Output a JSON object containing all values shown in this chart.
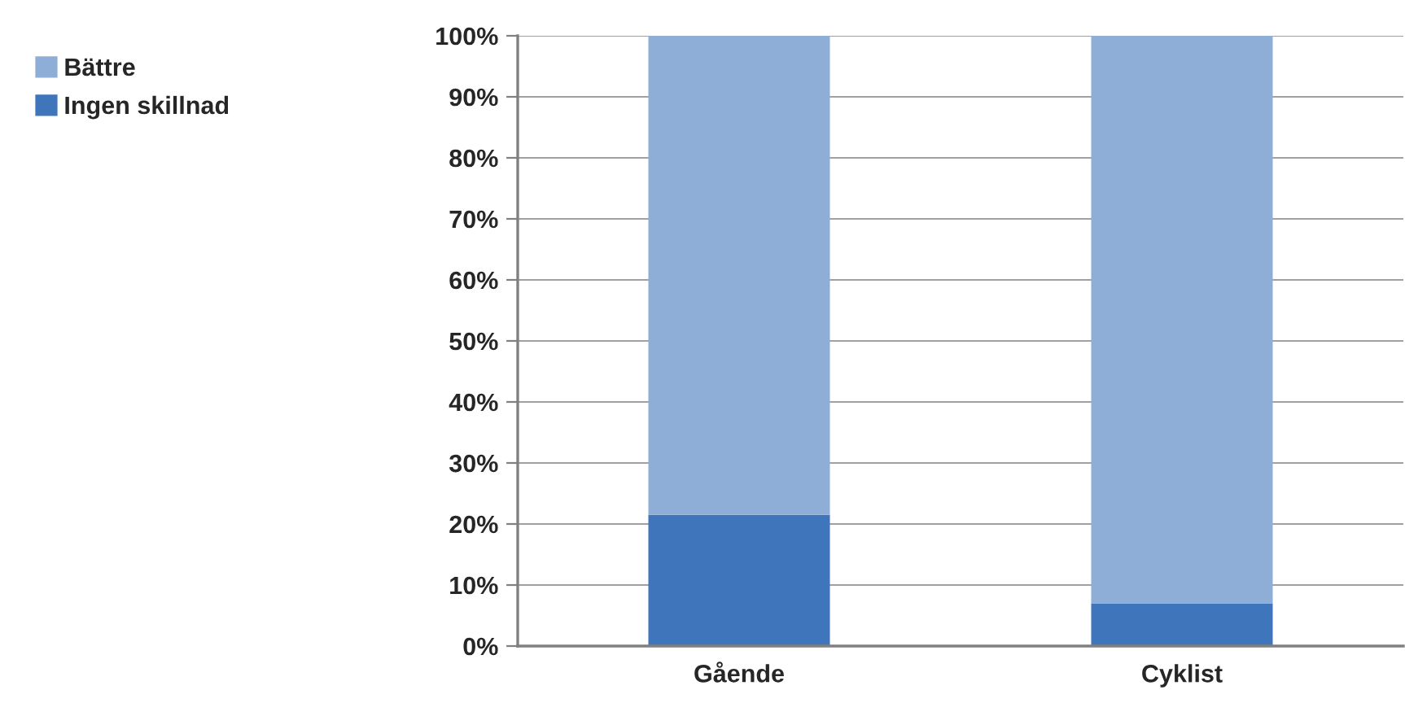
{
  "chart_data": {
    "type": "bar",
    "stacked": true,
    "categories": [
      "Gående",
      "Cyklist"
    ],
    "series": [
      {
        "name": "Ingen skillnad",
        "color": "#3f76bb",
        "values": [
          21.5,
          7
        ]
      },
      {
        "name": "Bättre",
        "color": "#8eaed7",
        "values": [
          78.5,
          93
        ]
      }
    ],
    "ylim": [
      0,
      100
    ],
    "yticks": [
      {
        "value": 0,
        "label": "0%"
      },
      {
        "value": 10,
        "label": "10%"
      },
      {
        "value": 20,
        "label": "20%"
      },
      {
        "value": 30,
        "label": "30%"
      },
      {
        "value": 40,
        "label": "40%"
      },
      {
        "value": 50,
        "label": "50%"
      },
      {
        "value": 60,
        "label": "60%"
      },
      {
        "value": 70,
        "label": "70%"
      },
      {
        "value": 80,
        "label": "80%"
      },
      {
        "value": 90,
        "label": "90%"
      },
      {
        "value": 100,
        "label": "100%"
      }
    ],
    "grid": "y",
    "legend": "top left"
  }
}
